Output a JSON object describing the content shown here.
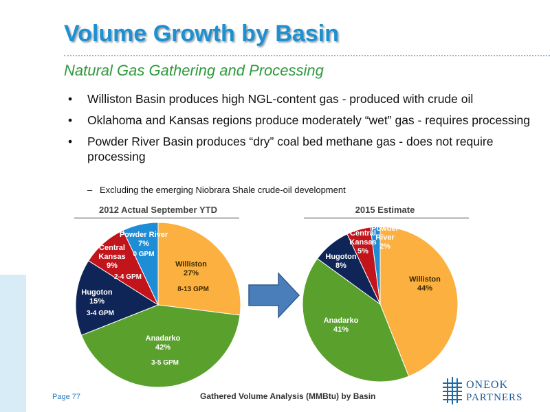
{
  "slide": {
    "title": "Volume Growth by Basin",
    "subtitle": "Natural Gas Gathering and Processing",
    "bullets": [
      "Williston Basin produces high NGL-content gas - produced with crude oil",
      "Oklahoma and Kansas regions produce moderately “wet” gas - requires processing",
      "Powder River Basin produces “dry” coal bed methane gas - does not require processing"
    ],
    "sub_bullet_dash": "–",
    "sub_bullet": "Excluding the emerging Niobrara Shale crude-oil development",
    "footer_page": "Page 77",
    "footer_caption": "Gathered Volume Analysis (MMBtu) by Basin",
    "logo": {
      "line1": "ONEOK",
      "line2": "PARTNERS"
    },
    "colors": {
      "title": "#1e90d0",
      "subtitle": "#2e9a3c",
      "arrow": "#4a7ebb"
    },
    "arrow_icon": "right-arrow-icon"
  },
  "chart_data": [
    {
      "type": "pie",
      "title": "2012 Actual September YTD",
      "slices": [
        {
          "label": "Williston",
          "value": 27,
          "pct": "27%",
          "gpm": "8-13 GPM",
          "color": "#fbb040"
        },
        {
          "label": "Anadarko",
          "value": 42,
          "pct": "42%",
          "gpm": "3-5 GPM",
          "color": "#5aa02c"
        },
        {
          "label": "Hugoton",
          "value": 15,
          "pct": "15%",
          "gpm": "3-4 GPM",
          "color": "#0f2557"
        },
        {
          "label": "Central Kansas",
          "value": 9,
          "pct": "9%",
          "gpm": "2-4 GPM",
          "color": "#c1141b"
        },
        {
          "label": "Powder River",
          "value": 7,
          "pct": "7%",
          "gpm": "0 GPM",
          "color": "#1f8dd6"
        }
      ]
    },
    {
      "type": "pie",
      "title": "2015 Estimate",
      "slices": [
        {
          "label": "Williston",
          "value": 44,
          "pct": "44%",
          "color": "#fbb040"
        },
        {
          "label": "Anadarko",
          "value": 41,
          "pct": "41%",
          "color": "#5aa02c"
        },
        {
          "label": "Hugoton",
          "value": 8,
          "pct": "8%",
          "color": "#0f2557"
        },
        {
          "label": "Central Kansas",
          "value": 5,
          "pct": "5%",
          "color": "#c1141b"
        },
        {
          "label": "Powder River",
          "value": 2,
          "pct": "2%",
          "color": "#1f8dd6"
        }
      ]
    }
  ]
}
